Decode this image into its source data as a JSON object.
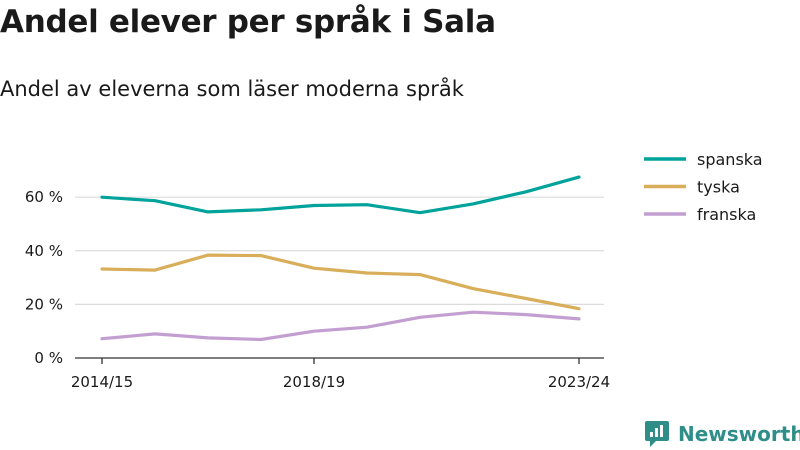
{
  "title": "Andel elever per språk i Sala",
  "subtitle": "Andel av eleverna som läser moderna språk",
  "brand": {
    "name": "Newsworthy"
  },
  "chart_data": {
    "type": "line",
    "title": "Andel elever per språk i Sala",
    "subtitle": "Andel av eleverna som läser moderna språk",
    "x": [
      "2014/15",
      "2015/16",
      "2016/17",
      "2017/18",
      "2018/19",
      "2019/20",
      "2020/21",
      "2021/22",
      "2022/23",
      "2023/24"
    ],
    "x_tick_labels": [
      "2014/15",
      "2018/19",
      "2023/24"
    ],
    "y_ticks": [
      0,
      20,
      40,
      60
    ],
    "y_tick_labels": [
      "0 %",
      "20 %",
      "40 %",
      "60 %"
    ],
    "ylim": [
      0,
      72
    ],
    "grid": true,
    "legend_position": "top-right",
    "series": [
      {
        "name": "spanska",
        "color": "#00a39b",
        "values": [
          60,
          58.7,
          54.5,
          55.3,
          56.9,
          57.2,
          54.2,
          57.5,
          62,
          67.5
        ]
      },
      {
        "name": "tyska",
        "color": "#d9ae5a",
        "values": [
          33.2,
          32.8,
          38.4,
          38.2,
          33.5,
          31.7,
          31.1,
          25.9,
          22.2,
          18.4
        ]
      },
      {
        "name": "franska",
        "color": "#c39fd1",
        "values": [
          7.2,
          9,
          7.5,
          6.9,
          10,
          11.5,
          15.2,
          17.1,
          16.2,
          14.6
        ]
      }
    ]
  }
}
